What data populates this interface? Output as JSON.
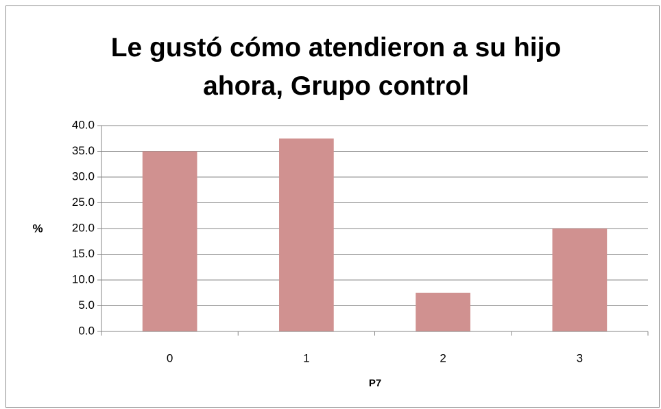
{
  "chart_data": {
    "type": "bar",
    "title": "Le gustó cómo atendieron a su hijo ahora, Grupo control",
    "xlabel": "P7",
    "ylabel": "%",
    "categories": [
      "0",
      "1",
      "2",
      "3"
    ],
    "values": [
      35.0,
      37.5,
      7.5,
      20.0
    ],
    "color": "#d09190",
    "ylim": [
      0,
      40
    ],
    "yticks": [
      {
        "value": 0,
        "label": "0.0"
      },
      {
        "value": 5,
        "label": "5.0"
      },
      {
        "value": 10,
        "label": "10.0"
      },
      {
        "value": 15,
        "label": "15.0"
      },
      {
        "value": 20,
        "label": "20.0"
      },
      {
        "value": 25,
        "label": "25.0"
      },
      {
        "value": 30,
        "label": "30.0"
      },
      {
        "value": 35,
        "label": "35.0"
      },
      {
        "value": 40,
        "label": "40.0"
      }
    ],
    "grid": true
  }
}
